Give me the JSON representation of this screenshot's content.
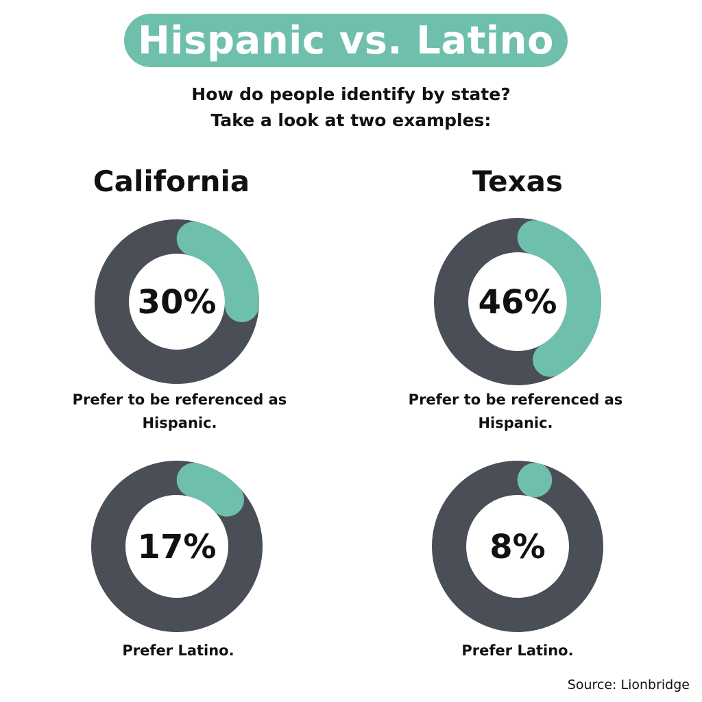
{
  "header": {
    "title": "Hispanic vs. Latino",
    "subtitle_line1": "How do people identify by state?",
    "subtitle_line2": "Take a look at two examples:"
  },
  "states": [
    {
      "name": "California"
    },
    {
      "name": "Texas"
    }
  ],
  "chart_data": {
    "type": "donut",
    "colors": {
      "highlight": "#6fbfad",
      "track": "#4a4f57"
    },
    "charts": [
      {
        "state": "California",
        "value": 30,
        "label": "30%",
        "caption_line1": "Prefer to be referenced as",
        "caption_line2": "Hispanic."
      },
      {
        "state": "Texas",
        "value": 46,
        "label": "46%",
        "caption_line1": "Prefer to be referenced as",
        "caption_line2": "Hispanic."
      },
      {
        "state": "California",
        "value": 17,
        "label": "17%",
        "caption_line1": "Prefer Latino.",
        "caption_line2": ""
      },
      {
        "state": "Texas",
        "value": 8,
        "label": "8%",
        "caption_line1": "Prefer Latino.",
        "caption_line2": ""
      }
    ]
  },
  "footer": {
    "source": "Source: Lionbridge"
  }
}
